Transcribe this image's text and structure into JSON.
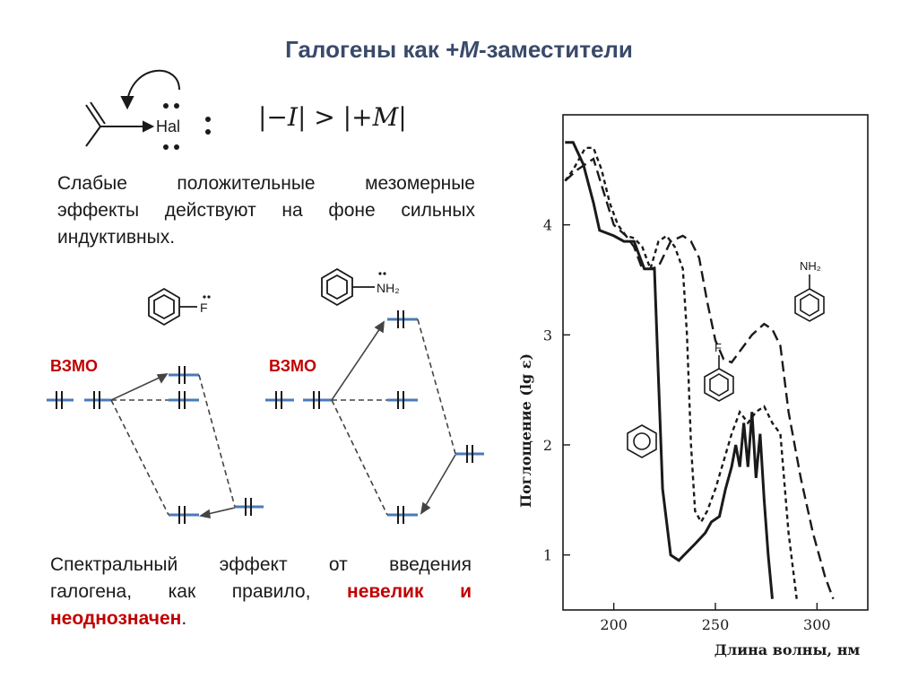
{
  "title": {
    "main": "Галогены как +",
    "ital": "M",
    "rest": "-заместители"
  },
  "mechanism": {
    "hal": "Hal"
  },
  "formula": {
    "text_a": "|−",
    "I": "I",
    "text_b": "| > |+",
    "M": "M",
    "text_c": "|"
  },
  "paragraph1": {
    "line1": "Слабые положительные мезомерные",
    "line2": "эффекты действуют на фоне сильных",
    "line3": "индуктивных."
  },
  "mo_left": {
    "label": "ВЗМО",
    "substituent": "F"
  },
  "mo_right": {
    "label": "ВЗМО",
    "substituent": "NH₂"
  },
  "paragraph2": {
    "line1": "Спектральный эффект от введения",
    "line2a": "галогена, как правило, ",
    "line2b": "невелик и",
    "line3a": "неоднозначен",
    "line3b": "."
  },
  "spectrum_labels": {
    "ylabel": "Поглощение (lg ε)",
    "xlabel": "Длина волны, нм",
    "nh2": "NH₂",
    "f": "F"
  },
  "chart_data": {
    "type": "line",
    "xlabel": "Длина волны, нм",
    "ylabel": "Поглощение (lg ε)",
    "xlim": [
      175,
      325
    ],
    "ylim": [
      0.5,
      5.0
    ],
    "x_ticks": [
      200,
      250,
      300
    ],
    "y_ticks": [
      1,
      2,
      3,
      4
    ],
    "series": [
      {
        "style": "solid",
        "points": [
          [
            176,
            4.75
          ],
          [
            180,
            4.75
          ],
          [
            185,
            4.55
          ],
          [
            190,
            4.2
          ],
          [
            193,
            3.95
          ],
          [
            200,
            3.9
          ],
          [
            205,
            3.85
          ],
          [
            210,
            3.85
          ],
          [
            213,
            3.7
          ],
          [
            215,
            3.6
          ],
          [
            220,
            3.6
          ],
          [
            222,
            2.6
          ],
          [
            224,
            1.6
          ],
          [
            228,
            1.0
          ],
          [
            232,
            0.95
          ],
          [
            240,
            1.1
          ],
          [
            245,
            1.2
          ],
          [
            248,
            1.3
          ],
          [
            252,
            1.35
          ],
          [
            255,
            1.6
          ],
          [
            258,
            1.8
          ],
          [
            260,
            2.0
          ],
          [
            262,
            1.8
          ],
          [
            264,
            2.2
          ],
          [
            266,
            1.8
          ],
          [
            268,
            2.3
          ],
          [
            270,
            1.7
          ],
          [
            272,
            2.1
          ],
          [
            274,
            1.5
          ],
          [
            276,
            1.0
          ],
          [
            278,
            0.6
          ]
        ]
      },
      {
        "style": "dotted",
        "points": [
          [
            176,
            4.4
          ],
          [
            180,
            4.5
          ],
          [
            186,
            4.7
          ],
          [
            190,
            4.7
          ],
          [
            194,
            4.5
          ],
          [
            198,
            4.2
          ],
          [
            202,
            4.0
          ],
          [
            206,
            3.9
          ],
          [
            210,
            3.88
          ],
          [
            214,
            3.8
          ],
          [
            218,
            3.6
          ],
          [
            222,
            3.85
          ],
          [
            226,
            3.9
          ],
          [
            230,
            3.8
          ],
          [
            234,
            3.6
          ],
          [
            236,
            3.0
          ],
          [
            238,
            2.0
          ],
          [
            240,
            1.4
          ],
          [
            243,
            1.3
          ],
          [
            246,
            1.4
          ],
          [
            250,
            1.6
          ],
          [
            254,
            1.85
          ],
          [
            258,
            2.1
          ],
          [
            262,
            2.3
          ],
          [
            266,
            2.2
          ],
          [
            270,
            2.3
          ],
          [
            274,
            2.35
          ],
          [
            278,
            2.2
          ],
          [
            282,
            2.1
          ],
          [
            286,
            1.2
          ],
          [
            290,
            0.6
          ]
        ]
      },
      {
        "style": "dashed",
        "points": [
          [
            176,
            4.4
          ],
          [
            182,
            4.5
          ],
          [
            186,
            4.55
          ],
          [
            190,
            4.6
          ],
          [
            195,
            4.3
          ],
          [
            200,
            4.0
          ],
          [
            206,
            3.9
          ],
          [
            210,
            3.8
          ],
          [
            214,
            3.6
          ],
          [
            218,
            3.6
          ],
          [
            222,
            3.62
          ],
          [
            228,
            3.85
          ],
          [
            234,
            3.9
          ],
          [
            238,
            3.85
          ],
          [
            242,
            3.7
          ],
          [
            246,
            3.3
          ],
          [
            250,
            2.95
          ],
          [
            254,
            2.78
          ],
          [
            258,
            2.75
          ],
          [
            262,
            2.85
          ],
          [
            268,
            3.0
          ],
          [
            274,
            3.1
          ],
          [
            278,
            3.05
          ],
          [
            282,
            2.9
          ],
          [
            286,
            2.3
          ],
          [
            292,
            1.7
          ],
          [
            298,
            1.2
          ],
          [
            304,
            0.8
          ],
          [
            308,
            0.6
          ]
        ]
      }
    ]
  }
}
